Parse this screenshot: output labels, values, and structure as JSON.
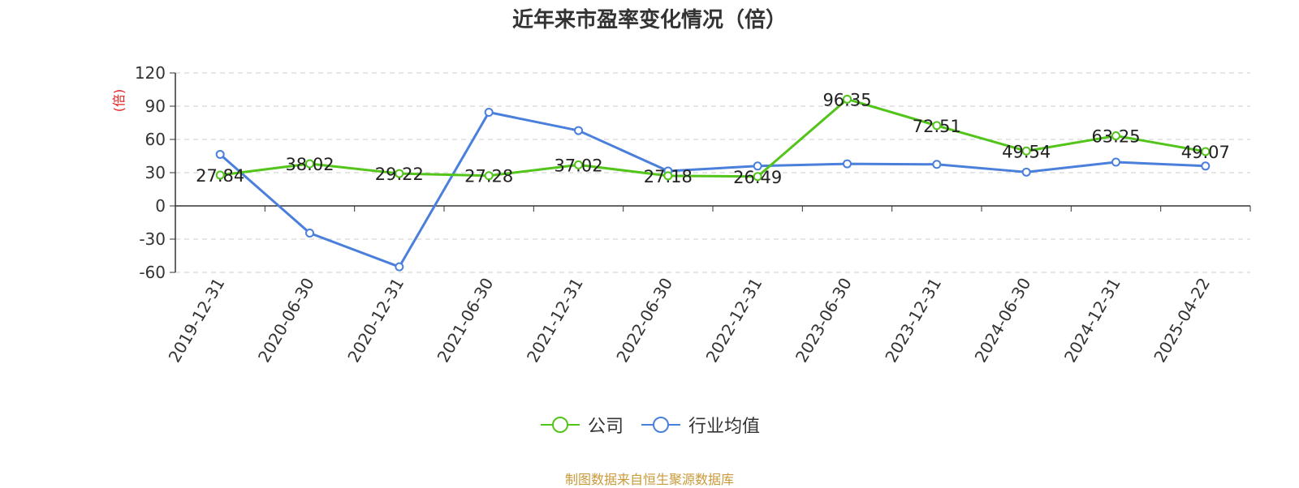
{
  "chart_data": {
    "type": "line",
    "title": "近年来市盈率变化情况（倍）",
    "ylabel": "(倍)",
    "xlabel": "",
    "categories": [
      "2019-12-31",
      "2020-06-30",
      "2020-12-31",
      "2021-06-30",
      "2021-12-31",
      "2022-06-30",
      "2022-12-31",
      "2023-06-30",
      "2023-12-31",
      "2024-06-30",
      "2024-12-31",
      "2025-04-22"
    ],
    "ylim": [
      -60,
      120
    ],
    "yticks": [
      -60,
      -30,
      0,
      30,
      60,
      90,
      120
    ],
    "grid": true,
    "legend_position": "bottom-center",
    "series": [
      {
        "name": "公司",
        "color": "#52c41a",
        "values": [
          27.84,
          38.02,
          29.22,
          27.28,
          37.02,
          27.18,
          26.49,
          96.35,
          72.51,
          49.54,
          63.25,
          49.07
        ],
        "labels": [
          "27.84",
          "38.02",
          "29.22",
          "27.28",
          "37.02",
          "27.18",
          "26.49",
          "96.35",
          "72.51",
          "49.54",
          "63.25",
          "49.07"
        ]
      },
      {
        "name": "行业均值",
        "color": "#4a7fdb",
        "values": [
          46.5,
          -24.5,
          -55.0,
          84.5,
          68.0,
          31.5,
          36.0,
          38.0,
          37.5,
          30.5,
          39.5,
          36.0
        ]
      }
    ],
    "source": "制图数据来自恒生聚源数据库"
  }
}
